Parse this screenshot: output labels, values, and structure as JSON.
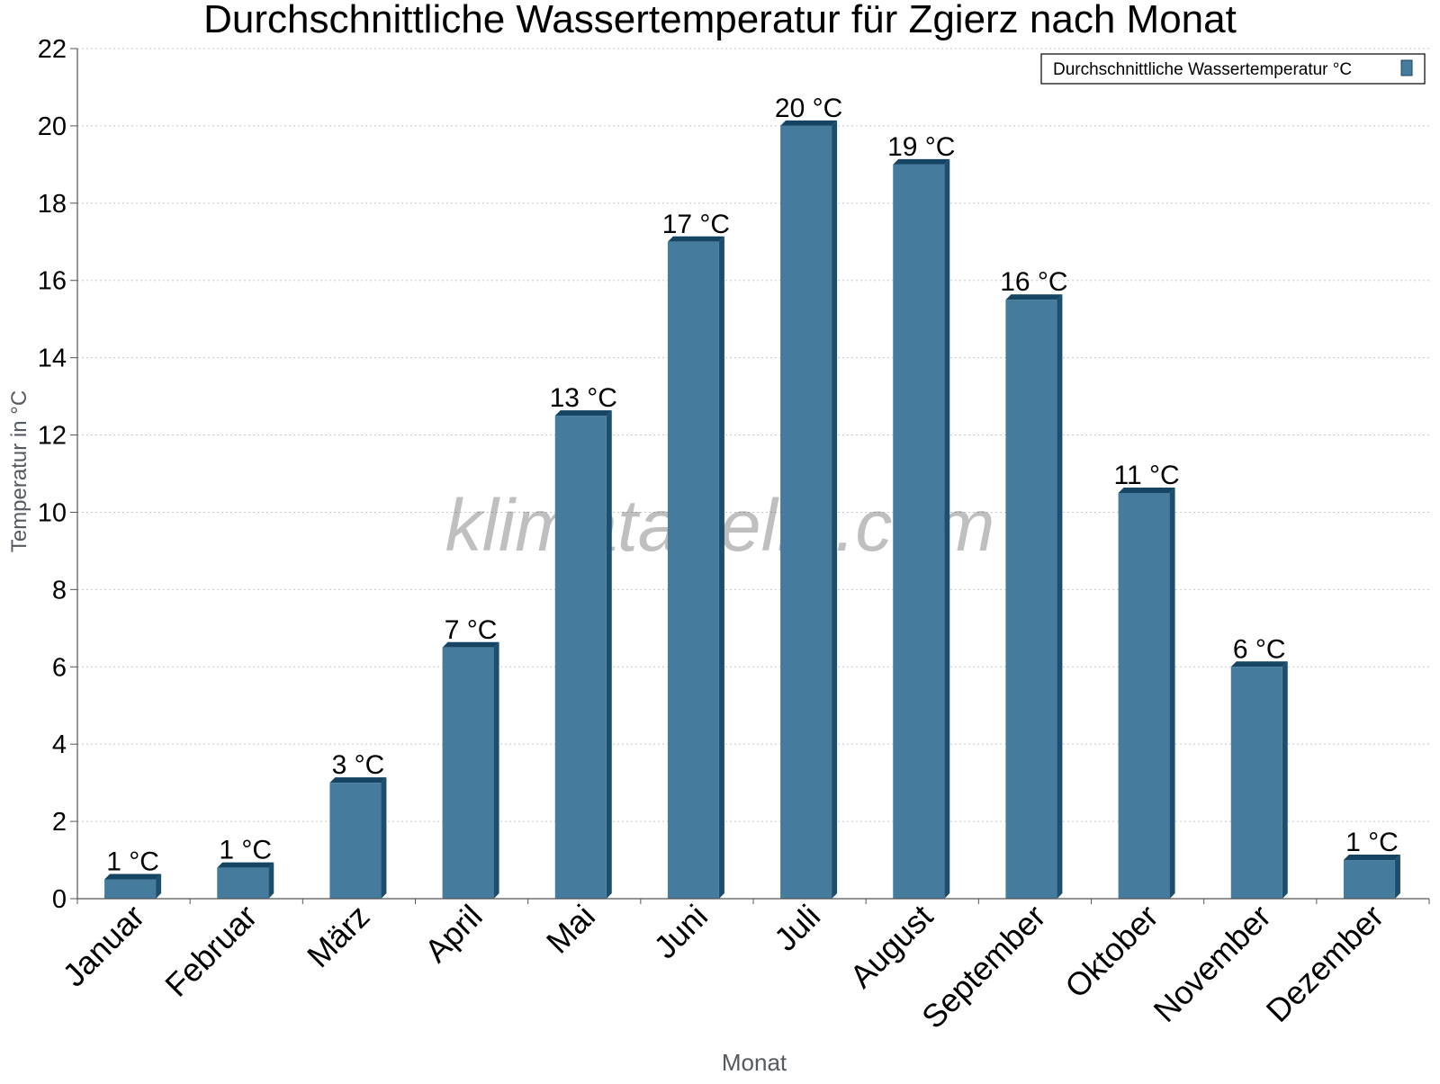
{
  "chart_data": {
    "type": "bar",
    "title": "Durchschnittliche Wassertemperatur für Zgierz nach Monat",
    "xlabel": "Monat",
    "ylabel": "Temperatur in °C",
    "categories": [
      "Januar",
      "Februar",
      "März",
      "April",
      "Mai",
      "Juni",
      "Juli",
      "August",
      "September",
      "Oktober",
      "November",
      "Dezember"
    ],
    "series": [
      {
        "name": "Durchschnittliche Wassertemperatur °C",
        "values": [
          0.5,
          0.8,
          3,
          6.5,
          12.5,
          17,
          20,
          19,
          15.5,
          10.5,
          6,
          1
        ],
        "labels": [
          "1 °C",
          "1 °C",
          "3 °C",
          "7 °C",
          "13 °C",
          "17 °C",
          "20 °C",
          "19 °C",
          "16 °C",
          "11 °C",
          "6 °C",
          "1 °C"
        ]
      }
    ],
    "ylim": [
      0,
      22
    ],
    "yticks": [
      0,
      2,
      4,
      6,
      8,
      10,
      12,
      14,
      16,
      18,
      20,
      22
    ],
    "grid": true,
    "legend_position": "top-right",
    "watermark": "klimatabelle.com",
    "colors": {
      "bar_face": "#457b9d",
      "bar_side": "#1d4e6e",
      "bar_top": "#154563",
      "grid": "#c8c8c8",
      "axis_label": "#555a60",
      "text": "#000000"
    }
  }
}
